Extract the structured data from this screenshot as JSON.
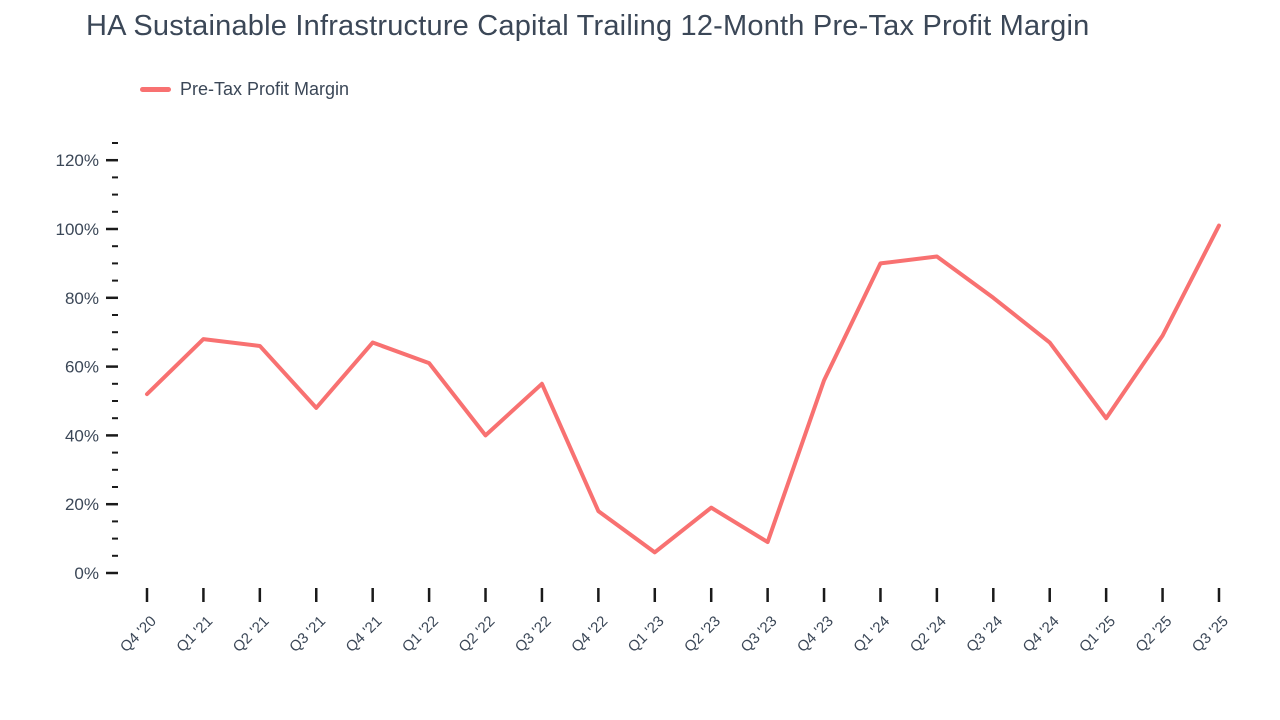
{
  "page": {
    "title": "HA Sustainable Infrastructure Capital Trailing 12-Month Pre-Tax Profit Margin"
  },
  "legend": {
    "items": [
      {
        "label": "Pre-Tax Profit Margin",
        "swatch": "line-dash-icon",
        "color": "#f87171"
      }
    ]
  },
  "colors": {
    "line": "#f87171",
    "text": "#3b4757",
    "tick": "#1a1a1a",
    "background": "#ffffff"
  },
  "chart_data": {
    "type": "line",
    "title": "HA Sustainable Infrastructure Capital Trailing 12-Month Pre-Tax Profit Margin",
    "xlabel": "",
    "ylabel": "",
    "unit": "%",
    "categories": [
      "Q4 '20",
      "Q1 '21",
      "Q2 '21",
      "Q3 '21",
      "Q4 '21",
      "Q1 '22",
      "Q2 '22",
      "Q3 '22",
      "Q4 '22",
      "Q1 '23",
      "Q2 '23",
      "Q3 '23",
      "Q4 '23",
      "Q1 '24",
      "Q2 '24",
      "Q3 '24",
      "Q4 '24",
      "Q1 '25",
      "Q2 '25",
      "Q3 '25"
    ],
    "series": [
      {
        "name": "Pre-Tax Profit Margin",
        "values": [
          52,
          68,
          66,
          48,
          67,
          61,
          40,
          55,
          18,
          6,
          19,
          9,
          56,
          90,
          92,
          80,
          67,
          45,
          69,
          101
        ]
      }
    ],
    "ylim": [
      0,
      125
    ],
    "y_tick_labels": [
      "0%",
      "20%",
      "40%",
      "60%",
      "80%",
      "100%",
      "120%"
    ],
    "y_major_step": 20,
    "y_minor_step": 5,
    "grid": false,
    "legend_position": "top-left"
  }
}
